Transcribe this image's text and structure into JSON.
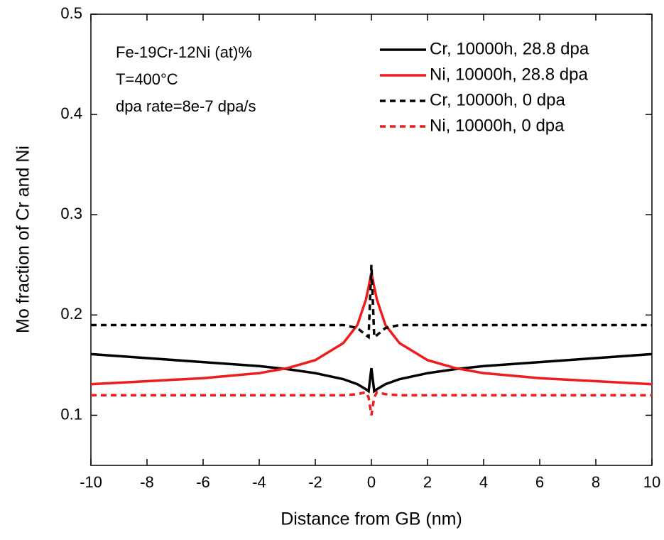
{
  "chart_data": {
    "type": "line",
    "xlabel": "Distance from GB (nm)",
    "ylabel": "Mo fraction of Cr and Ni",
    "annotations": [
      "Fe-19Cr-12Ni (at)%",
      "T=400°C",
      "dpa rate=8e-7 dpa/s"
    ],
    "x": [
      -10,
      -8,
      -6,
      -4,
      -3,
      -2,
      -1,
      -0.5,
      -0.2,
      -0.1,
      0,
      0.1,
      0.2,
      0.5,
      1,
      2,
      3,
      4,
      6,
      8,
      10
    ],
    "series": [
      {
        "name": "Cr, 10000h, 28.8 dpa",
        "color": "#000000",
        "linestyle": "solid",
        "values": [
          0.161,
          0.157,
          0.153,
          0.149,
          0.146,
          0.142,
          0.136,
          0.131,
          0.126,
          0.124,
          0.147,
          0.124,
          0.126,
          0.131,
          0.136,
          0.142,
          0.146,
          0.149,
          0.153,
          0.157,
          0.161
        ]
      },
      {
        "name": "Ni, 10000h, 28.8 dpa",
        "color": "#ee1c1c",
        "linestyle": "solid",
        "values": [
          0.131,
          0.134,
          0.137,
          0.142,
          0.147,
          0.155,
          0.172,
          0.19,
          0.215,
          0.228,
          0.242,
          0.228,
          0.215,
          0.19,
          0.172,
          0.155,
          0.147,
          0.142,
          0.137,
          0.134,
          0.131
        ]
      },
      {
        "name": "Cr, 10000h, 0 dpa",
        "color": "#000000",
        "linestyle": "dashed",
        "values": [
          0.19,
          0.19,
          0.19,
          0.19,
          0.19,
          0.19,
          0.19,
          0.187,
          0.18,
          0.178,
          0.25,
          0.178,
          0.18,
          0.187,
          0.19,
          0.19,
          0.19,
          0.19,
          0.19,
          0.19,
          0.19
        ]
      },
      {
        "name": "Ni, 10000h, 0 dpa",
        "color": "#ee1c1c",
        "linestyle": "dashed",
        "values": [
          0.12,
          0.12,
          0.12,
          0.12,
          0.12,
          0.12,
          0.12,
          0.121,
          0.123,
          0.118,
          0.1,
          0.118,
          0.123,
          0.121,
          0.12,
          0.12,
          0.12,
          0.12,
          0.12,
          0.12,
          0.12
        ]
      }
    ],
    "xlim": [
      -10,
      10
    ],
    "xticks": [
      -10,
      -8,
      -6,
      -4,
      -2,
      0,
      2,
      4,
      6,
      8,
      10
    ],
    "ylim": [
      0.05,
      0.5
    ],
    "yticks": [
      0.1,
      0.2,
      0.3,
      0.4,
      0.5
    ],
    "legend": "upper right",
    "grid": false
  }
}
